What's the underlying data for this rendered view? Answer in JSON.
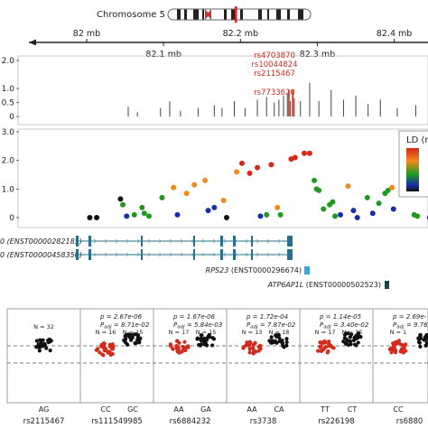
{
  "ideogram": {
    "label": "Chromosome 5"
  },
  "genome_axis": {
    "ticks_top": [
      {
        "label": "82 mb",
        "mb": 82.0
      },
      {
        "label": "82.2 mb",
        "mb": 82.2
      },
      {
        "label": "82.4 mb",
        "mb": 82.4
      }
    ],
    "ticks_bottom": [
      {
        "label": "82.1 mb",
        "mb": 82.1
      },
      {
        "label": "82.3 mb",
        "mb": 82.3
      }
    ]
  },
  "colors": {
    "ld_high": "#d42a1a",
    "ld_mid_high": "#f28a1c",
    "ld_mid": "#1f9a1f",
    "ld_low": "#1a2ea8",
    "ld_none": "#111111",
    "highlight": "#d42a1a",
    "gene_model": "#2a6f8a",
    "rps23": "#35a6e6",
    "atp6ap1l": "#1e4050"
  },
  "chart_data": [
    {
      "type": "bar",
      "panel": "top-association",
      "ylim": [
        0,
        2.0
      ],
      "yticks": [
        "2.0",
        "1.0",
        "0.5",
        "0"
      ],
      "ytick_values": [
        2.0,
        1.0,
        0.5,
        0
      ],
      "highlight_labels": [
        "rs4703870",
        "rs10044824",
        "rs2115467",
        "rs7733620"
      ],
      "bars": [
        {
          "mb": 82.054,
          "value": 0.35
        },
        {
          "mb": 82.066,
          "value": 0.15
        },
        {
          "mb": 82.096,
          "value": 0.3
        },
        {
          "mb": 82.108,
          "value": 0.55
        },
        {
          "mb": 82.122,
          "value": 0.2
        },
        {
          "mb": 82.145,
          "value": 0.3
        },
        {
          "mb": 82.166,
          "value": 0.4
        },
        {
          "mb": 82.176,
          "value": 0.3
        },
        {
          "mb": 82.192,
          "value": 0.55
        },
        {
          "mb": 82.206,
          "value": 0.3
        },
        {
          "mb": 82.222,
          "value": 0.6
        },
        {
          "mb": 82.234,
          "value": 0.7
        },
        {
          "mb": 82.244,
          "value": 0.5
        },
        {
          "mb": 82.25,
          "value": 0.6
        },
        {
          "mb": 82.256,
          "value": 0.75
        },
        {
          "mb": 82.261,
          "value": 0.8
        },
        {
          "mb": 82.265,
          "value": 0.55
        },
        {
          "mb": 82.27,
          "value": 0.65
        },
        {
          "mb": 82.278,
          "value": 0.55
        },
        {
          "mb": 82.29,
          "value": 1.2
        },
        {
          "mb": 82.302,
          "value": 0.55
        },
        {
          "mb": 82.318,
          "value": 0.95
        },
        {
          "mb": 82.334,
          "value": 0.6
        },
        {
          "mb": 82.35,
          "value": 0.75
        },
        {
          "mb": 82.366,
          "value": 0.45
        },
        {
          "mb": 82.382,
          "value": 0.6
        },
        {
          "mb": 82.404,
          "value": 0.3
        },
        {
          "mb": 82.428,
          "value": 0.4
        }
      ],
      "highlight_bars": [
        82.263,
        82.268
      ]
    },
    {
      "type": "scatter",
      "panel": "ld-regional",
      "ylim": [
        0,
        3.0
      ],
      "yticks": [
        "3.0",
        "2.0",
        "1.0",
        "0"
      ],
      "ytick_values": [
        3.0,
        2.0,
        1.0,
        0
      ],
      "legend_title": "LD (r",
      "points": [
        {
          "mb": 82.004,
          "y": 0.0,
          "ld": "none"
        },
        {
          "mb": 82.013,
          "y": 0.0,
          "ld": "none"
        },
        {
          "mb": 82.044,
          "y": 0.65,
          "ld": "none"
        },
        {
          "mb": 82.047,
          "y": 0.45,
          "ld": "mid"
        },
        {
          "mb": 82.052,
          "y": 0.05,
          "ld": "low"
        },
        {
          "mb": 82.062,
          "y": 0.1,
          "ld": "mid"
        },
        {
          "mb": 82.072,
          "y": 0.35,
          "ld": "mid"
        },
        {
          "mb": 82.075,
          "y": 0.15,
          "ld": "mid"
        },
        {
          "mb": 82.081,
          "y": 0.05,
          "ld": "mid"
        },
        {
          "mb": 82.098,
          "y": 0.7,
          "ld": "mid"
        },
        {
          "mb": 82.113,
          "y": 1.05,
          "ld": "mid_high"
        },
        {
          "mb": 82.118,
          "y": 0.1,
          "ld": "low"
        },
        {
          "mb": 82.13,
          "y": 0.85,
          "ld": "mid_high"
        },
        {
          "mb": 82.14,
          "y": 1.15,
          "ld": "mid_high"
        },
        {
          "mb": 82.154,
          "y": 1.3,
          "ld": "mid_high"
        },
        {
          "mb": 82.158,
          "y": 0.25,
          "ld": "low"
        },
        {
          "mb": 82.166,
          "y": 0.35,
          "ld": "low"
        },
        {
          "mb": 82.178,
          "y": 0.6,
          "ld": "mid_high"
        },
        {
          "mb": 82.182,
          "y": 0.0,
          "ld": "none"
        },
        {
          "mb": 82.195,
          "y": 1.6,
          "ld": "mid_high"
        },
        {
          "mb": 82.202,
          "y": 1.9,
          "ld": "high"
        },
        {
          "mb": 82.212,
          "y": 1.55,
          "ld": "high"
        },
        {
          "mb": 82.222,
          "y": 1.75,
          "ld": "high"
        },
        {
          "mb": 82.226,
          "y": 0.05,
          "ld": "low"
        },
        {
          "mb": 82.234,
          "y": 0.1,
          "ld": "mid"
        },
        {
          "mb": 82.24,
          "y": 1.85,
          "ld": "high"
        },
        {
          "mb": 82.248,
          "y": 0.35,
          "ld": "mid_high"
        },
        {
          "mb": 82.252,
          "y": 0.1,
          "ld": "mid"
        },
        {
          "mb": 82.266,
          "y": 2.05,
          "ld": "high"
        },
        {
          "mb": 82.271,
          "y": 2.1,
          "ld": "high"
        },
        {
          "mb": 82.283,
          "y": 2.25,
          "ld": "high"
        },
        {
          "mb": 82.29,
          "y": 2.25,
          "ld": "high"
        },
        {
          "mb": 82.296,
          "y": 1.3,
          "ld": "mid"
        },
        {
          "mb": 82.299,
          "y": 1.0,
          "ld": "mid"
        },
        {
          "mb": 82.302,
          "y": 0.95,
          "ld": "mid"
        },
        {
          "mb": 82.308,
          "y": 0.3,
          "ld": "mid"
        },
        {
          "mb": 82.316,
          "y": 0.45,
          "ld": "mid"
        },
        {
          "mb": 82.32,
          "y": 0.55,
          "ld": "mid"
        },
        {
          "mb": 82.323,
          "y": 0.05,
          "ld": "mid"
        },
        {
          "mb": 82.33,
          "y": 0.1,
          "ld": "low"
        },
        {
          "mb": 82.34,
          "y": 1.1,
          "ld": "mid_high"
        },
        {
          "mb": 82.347,
          "y": 0.25,
          "ld": "low"
        },
        {
          "mb": 82.352,
          "y": 0.0,
          "ld": "low"
        },
        {
          "mb": 82.365,
          "y": 0.7,
          "ld": "mid"
        },
        {
          "mb": 82.372,
          "y": 0.15,
          "ld": "low"
        },
        {
          "mb": 82.38,
          "y": 0.5,
          "ld": "mid"
        },
        {
          "mb": 82.388,
          "y": 0.85,
          "ld": "mid"
        },
        {
          "mb": 82.392,
          "y": 0.95,
          "ld": "mid"
        },
        {
          "mb": 82.397,
          "y": 1.05,
          "ld": "mid_high"
        },
        {
          "mb": 82.399,
          "y": 0.3,
          "ld": "low"
        },
        {
          "mb": 82.426,
          "y": 0.1,
          "ld": "mid"
        },
        {
          "mb": 82.43,
          "y": 0.05,
          "ld": "mid"
        },
        {
          "mb": 82.446,
          "y": 0.0,
          "ld": "low"
        }
      ]
    },
    {
      "type": "scatter",
      "panel": "genotype-strips",
      "pvalues": [
        {
          "p": "",
          "padj": ""
        },
        {
          "p": "2.67e-06",
          "padj": "8.71e-02"
        },
        {
          "p": "1.67e-06",
          "padj": "5.84e-03"
        },
        {
          "p": "1.72e-04",
          "padj": "7.87e-02"
        },
        {
          "p": "1.14e-05",
          "padj": "3.40e-02"
        },
        {
          "p": "2.69e-",
          "padj": "9.76"
        }
      ],
      "groups": [
        {
          "snp": "rs2115467",
          "genotypes": [
            {
              "label": "AG",
              "n": "N = 32",
              "color": "black",
              "spread": 0.0
            }
          ]
        },
        {
          "snp": "rs111549985",
          "genotypes": [
            {
              "label": "CC",
              "n": "N = 16",
              "color": "red",
              "spread": -0.25
            },
            {
              "label": "GC",
              "n": "N = 15",
              "color": "black",
              "spread": 0.25
            }
          ]
        },
        {
          "snp": "rs6884232",
          "genotypes": [
            {
              "label": "AA",
              "n": "N = 17",
              "color": "red",
              "spread": -0.1
            },
            {
              "label": "GA",
              "n": "N = 15",
              "color": "black",
              "spread": 0.25
            }
          ]
        },
        {
          "snp": "rs3738",
          "genotypes": [
            {
              "label": "AA",
              "n": "N = 13",
              "color": "red",
              "spread": -0.15
            },
            {
              "label": "CA",
              "n": "N = 18",
              "color": "black",
              "spread": 0.2
            }
          ]
        },
        {
          "snp": "rs226198",
          "genotypes": [
            {
              "label": "TT",
              "n": "N = 17",
              "color": "red",
              "spread": -0.15
            },
            {
              "label": "CT",
              "n": "N = 15",
              "color": "black",
              "spread": 0.3
            }
          ]
        },
        {
          "snp": "rs6880",
          "genotypes": [
            {
              "label": "CC",
              "n": "N = 1",
              "color": "red",
              "spread": -0.1
            },
            {
              "label": "",
              "n": "",
              "color": "black",
              "spread": 0.25
            }
          ]
        }
      ]
    }
  ],
  "tracks": {
    "transcript_1": "0 (ENST00000282185)",
    "transcript_2": "0 (ENST00000458350)",
    "gene_rps23_name": "RPS23",
    "gene_rps23_id": " (ENST0000296674)",
    "gene_atp_name": "ATP6AP1L",
    "gene_atp_id": " (ENST00000502523)"
  }
}
